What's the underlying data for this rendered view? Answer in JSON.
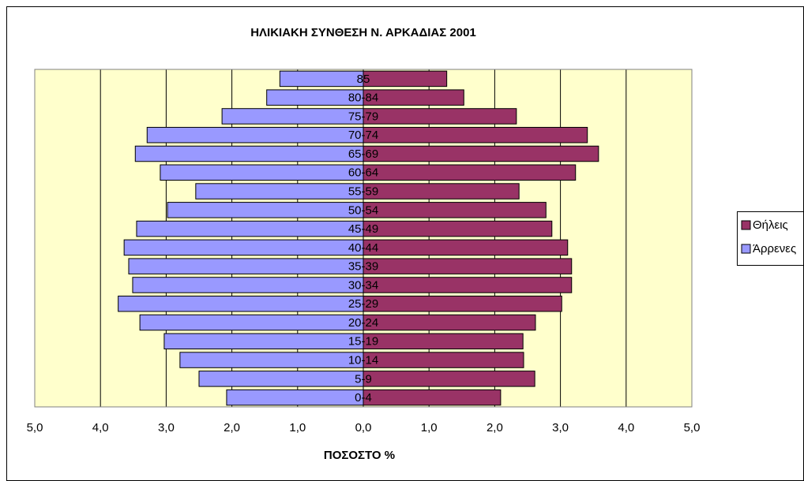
{
  "chart_data": {
    "type": "pyramid",
    "title": "ΗΛΙΚΙΑΚΗ ΣΥΝΘΕΣΗ Ν. ΑΡΚΑΔΙΑΣ 2001",
    "x_label": "ΠΟΣΟΣΤΟ %",
    "categories": [
      "0-4",
      "5-9",
      "10-14",
      "15-19",
      "20-24",
      "25-29",
      "30-34",
      "35-39",
      "40-44",
      "45-49",
      "50-54",
      "55-59",
      "60-64",
      "65-69",
      "70-74",
      "75-79",
      "80-84",
      "85"
    ],
    "series": [
      {
        "name": "Θήλεις",
        "color": "#993366",
        "side": "right",
        "values": [
          2.09,
          2.61,
          2.44,
          2.43,
          2.62,
          3.02,
          3.17,
          3.17,
          3.11,
          2.87,
          2.78,
          2.37,
          3.23,
          3.58,
          3.41,
          2.33,
          1.53,
          1.27
        ]
      },
      {
        "name": "Άρρενες",
        "color": "#9999ff",
        "side": "left",
        "values": [
          2.08,
          2.5,
          2.79,
          3.03,
          3.4,
          3.73,
          3.51,
          3.57,
          3.64,
          3.45,
          2.98,
          2.55,
          3.09,
          3.47,
          3.29,
          2.15,
          1.47,
          1.27
        ]
      }
    ],
    "xlim": [
      -5,
      5
    ],
    "xticks": [
      {
        "value": -5,
        "label": "5,0"
      },
      {
        "value": -4,
        "label": "4,0"
      },
      {
        "value": -3,
        "label": "3,0"
      },
      {
        "value": -2,
        "label": "2,0"
      },
      {
        "value": -1,
        "label": "1,0"
      },
      {
        "value": 0,
        "label": "0,0"
      },
      {
        "value": 1,
        "label": "1,0"
      },
      {
        "value": 2,
        "label": "2,0"
      },
      {
        "value": 3,
        "label": "3,0"
      },
      {
        "value": 4,
        "label": "4,0"
      },
      {
        "value": 5,
        "label": "5,0"
      }
    ],
    "grid": true,
    "legend": "right"
  }
}
